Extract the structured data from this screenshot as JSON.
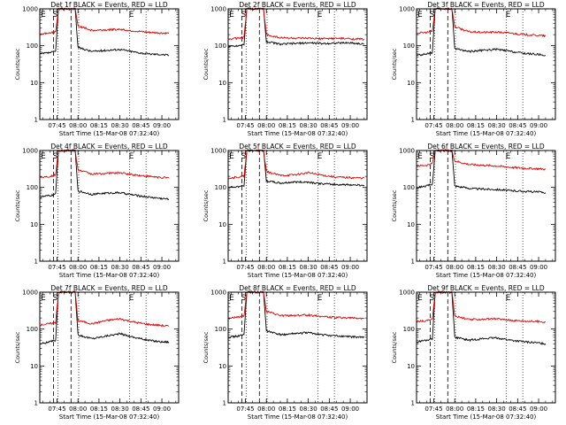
{
  "chart_data": [
    {
      "type": "line",
      "title": "Det 1f BLACK = Events, RED = LLD",
      "xlabel": "Start Time (15-Mar-08 07:32:40)",
      "ylabel": "Counts/sec",
      "x_ticks": [
        "07:45",
        "08:00",
        "08:15",
        "08:30",
        "08:45",
        "09:00"
      ],
      "y_ticks": [
        "1",
        "10",
        "100",
        "1000"
      ],
      "ylim": [
        1,
        1000
      ],
      "yscale": "log",
      "markers": [
        "E",
        "S",
        "E"
      ],
      "series": [
        {
          "name": "Events",
          "color": "#000000",
          "base": 50,
          "x": [
            "07:33",
            "07:40",
            "07:44",
            "07:46",
            "07:58",
            "08:00",
            "08:10",
            "08:20",
            "08:30",
            "08:40",
            "08:50",
            "09:00",
            "09:05"
          ],
          "values": [
            60,
            65,
            70,
            1000,
            1000,
            90,
            70,
            75,
            80,
            68,
            60,
            58,
            55
          ]
        },
        {
          "name": "LLD",
          "color": "#e00000",
          "x": [
            "07:33",
            "07:40",
            "07:44",
            "07:46",
            "07:58",
            "08:00",
            "08:10",
            "08:20",
            "08:30",
            "08:40",
            "08:50",
            "09:00",
            "09:05"
          ],
          "values": [
            210,
            220,
            240,
            1000,
            1000,
            350,
            260,
            270,
            280,
            250,
            230,
            220,
            215
          ]
        }
      ]
    },
    {
      "type": "line",
      "title": "Det 2f BLACK = Events, RED = LLD",
      "xlabel": "Start Time (15-Mar-08 07:32:40)",
      "ylabel": "Counts/sec",
      "x_ticks": [
        "07:45",
        "08:00",
        "08:15",
        "08:30",
        "08:45",
        "09:00"
      ],
      "y_ticks": [
        "1",
        "10",
        "100",
        "1000"
      ],
      "ylim": [
        1,
        1000
      ],
      "yscale": "log",
      "markers": [
        "E",
        "S",
        "E"
      ],
      "series": [
        {
          "name": "Events",
          "color": "#000000",
          "x": [
            "07:33",
            "07:40",
            "07:44",
            "07:46",
            "07:58",
            "08:00",
            "08:10",
            "08:20",
            "08:30",
            "08:40",
            "08:50",
            "09:00",
            "09:10"
          ],
          "values": [
            95,
            100,
            110,
            1000,
            1000,
            130,
            110,
            115,
            120,
            115,
            118,
            120,
            110
          ]
        },
        {
          "name": "LLD",
          "color": "#e00000",
          "x": [
            "07:33",
            "07:40",
            "07:44",
            "07:46",
            "07:58",
            "08:00",
            "08:10",
            "08:20",
            "08:30",
            "08:40",
            "08:50",
            "09:00",
            "09:10"
          ],
          "values": [
            150,
            160,
            170,
            1000,
            1000,
            200,
            165,
            160,
            158,
            155,
            158,
            155,
            150
          ]
        }
      ]
    },
    {
      "type": "line",
      "title": "Det 3f BLACK = Events, RED = LLD",
      "xlabel": "Start Time (15-Mar-08 07:32:40)",
      "ylabel": "Counts/sec",
      "x_ticks": [
        "07:45",
        "08:00",
        "08:15",
        "08:30",
        "08:45",
        "09:00"
      ],
      "y_ticks": [
        "1",
        "10",
        "100",
        "1000"
      ],
      "ylim": [
        1,
        1000
      ],
      "yscale": "log",
      "markers": [
        "E",
        "S",
        "E"
      ],
      "series": [
        {
          "name": "Events",
          "color": "#000000",
          "x": [
            "07:33",
            "07:40",
            "07:44",
            "07:46",
            "07:58",
            "08:00",
            "08:10",
            "08:20",
            "08:30",
            "08:40",
            "08:50",
            "09:00",
            "09:05"
          ],
          "values": [
            55,
            60,
            65,
            1000,
            1000,
            85,
            70,
            75,
            80,
            70,
            62,
            58,
            55
          ]
        },
        {
          "name": "LLD",
          "color": "#e00000",
          "x": [
            "07:33",
            "07:40",
            "07:44",
            "07:46",
            "07:58",
            "08:00",
            "08:10",
            "08:20",
            "08:30",
            "08:40",
            "08:50",
            "09:00",
            "09:05"
          ],
          "values": [
            220,
            230,
            250,
            1000,
            1000,
            330,
            240,
            230,
            235,
            220,
            200,
            190,
            185
          ]
        }
      ]
    },
    {
      "type": "line",
      "title": "Det 4f BLACK = Events, RED = LLD",
      "xlabel": "Start Time (15-Mar-08 07:32:40)",
      "ylabel": "Counts/sec",
      "x_ticks": [
        "07:45",
        "08:00",
        "08:15",
        "08:30",
        "08:45",
        "09:00"
      ],
      "y_ticks": [
        "1",
        "10",
        "100",
        "1000"
      ],
      "ylim": [
        1,
        1000
      ],
      "yscale": "log",
      "markers": [
        "E",
        "S",
        "E"
      ],
      "series": [
        {
          "name": "Events",
          "color": "#000000",
          "x": [
            "07:33",
            "07:40",
            "07:44",
            "07:46",
            "07:58",
            "08:00",
            "08:10",
            "08:20",
            "08:30",
            "08:40",
            "08:50",
            "09:00",
            "09:05"
          ],
          "values": [
            55,
            60,
            65,
            1000,
            1000,
            80,
            65,
            70,
            72,
            62,
            55,
            50,
            48
          ]
        },
        {
          "name": "LLD",
          "color": "#e00000",
          "x": [
            "07:33",
            "07:40",
            "07:44",
            "07:46",
            "07:58",
            "08:00",
            "08:10",
            "08:20",
            "08:30",
            "08:40",
            "08:50",
            "09:00",
            "09:05"
          ],
          "values": [
            190,
            200,
            220,
            1000,
            1000,
            300,
            230,
            240,
            250,
            220,
            200,
            185,
            180
          ]
        }
      ]
    },
    {
      "type": "line",
      "title": "Det 5f BLACK = Events, RED = LLD",
      "xlabel": "Start Time (15-Mar-08 07:32:40)",
      "ylabel": "Counts/sec",
      "x_ticks": [
        "07:45",
        "08:00",
        "08:15",
        "08:30",
        "08:45",
        "09:00"
      ],
      "y_ticks": [
        "1",
        "10",
        "100",
        "1000"
      ],
      "ylim": [
        1,
        1000
      ],
      "yscale": "log",
      "markers": [
        "E",
        "S",
        "E"
      ],
      "series": [
        {
          "name": "Events",
          "color": "#000000",
          "x": [
            "07:33",
            "07:40",
            "07:44",
            "07:46",
            "07:58",
            "08:00",
            "08:10",
            "08:20",
            "08:30",
            "08:40",
            "08:50",
            "09:00",
            "09:10"
          ],
          "values": [
            100,
            105,
            110,
            1000,
            1000,
            150,
            130,
            140,
            140,
            125,
            120,
            118,
            115
          ]
        },
        {
          "name": "LLD",
          "color": "#e00000",
          "x": [
            "07:33",
            "07:40",
            "07:44",
            "07:46",
            "07:58",
            "08:00",
            "08:10",
            "08:20",
            "08:30",
            "08:40",
            "08:50",
            "09:00",
            "09:10"
          ],
          "values": [
            180,
            190,
            200,
            1000,
            1000,
            270,
            210,
            220,
            250,
            215,
            190,
            185,
            180
          ]
        }
      ]
    },
    {
      "type": "line",
      "title": "Det 6f BLACK = Events, RED = LLD",
      "xlabel": "Start Time (15-Mar-08 07:32:40)",
      "ylabel": "Counts/sec",
      "x_ticks": [
        "07:45",
        "08:00",
        "08:15",
        "08:30",
        "08:45",
        "09:00"
      ],
      "y_ticks": [
        "1",
        "10",
        "100",
        "1000"
      ],
      "ylim": [
        1,
        1000
      ],
      "yscale": "log",
      "markers": [
        "E",
        "S",
        "E"
      ],
      "series": [
        {
          "name": "Events",
          "color": "#000000",
          "x": [
            "07:33",
            "07:40",
            "07:44",
            "07:46",
            "07:58",
            "08:00",
            "08:10",
            "08:20",
            "08:30",
            "08:40",
            "08:50",
            "09:00",
            "09:05"
          ],
          "values": [
            100,
            110,
            120,
            1000,
            1000,
            110,
            95,
            90,
            88,
            82,
            78,
            75,
            72
          ]
        },
        {
          "name": "LLD",
          "color": "#e00000",
          "x": [
            "07:33",
            "07:40",
            "07:44",
            "07:46",
            "07:58",
            "08:00",
            "08:10",
            "08:20",
            "08:30",
            "08:40",
            "08:50",
            "09:00",
            "09:05"
          ],
          "values": [
            380,
            400,
            450,
            1000,
            1000,
            520,
            420,
            400,
            380,
            350,
            330,
            320,
            310
          ]
        }
      ]
    },
    {
      "type": "line",
      "title": "Det 7f BLACK = Events, RED = LLD",
      "xlabel": "Start Time (15-Mar-08 07:32:40)",
      "ylabel": "Counts/sec",
      "x_ticks": [
        "07:45",
        "08:00",
        "08:15",
        "08:30",
        "08:45",
        "09:00"
      ],
      "y_ticks": [
        "1",
        "10",
        "100",
        "1000"
      ],
      "ylim": [
        1,
        1000
      ],
      "yscale": "log",
      "markers": [
        "E",
        "S",
        "E"
      ],
      "series": [
        {
          "name": "Events",
          "color": "#000000",
          "x": [
            "07:33",
            "07:40",
            "07:44",
            "07:46",
            "07:58",
            "08:00",
            "08:10",
            "08:20",
            "08:30",
            "08:40",
            "08:50",
            "09:00",
            "09:05"
          ],
          "values": [
            40,
            45,
            50,
            1000,
            1000,
            70,
            55,
            65,
            75,
            60,
            50,
            45,
            45
          ]
        },
        {
          "name": "LLD",
          "color": "#e00000",
          "x": [
            "07:33",
            "07:40",
            "07:44",
            "07:46",
            "07:58",
            "08:00",
            "08:10",
            "08:20",
            "08:30",
            "08:40",
            "08:50",
            "09:00",
            "09:05"
          ],
          "values": [
            130,
            140,
            150,
            1000,
            1000,
            170,
            140,
            170,
            190,
            155,
            135,
            125,
            120
          ]
        }
      ]
    },
    {
      "type": "line",
      "title": "Det 8f BLACK = Events, RED = LLD",
      "xlabel": "Start Time (15-Mar-08 07:32:40)",
      "ylabel": "Counts/sec",
      "x_ticks": [
        "07:45",
        "08:00",
        "08:15",
        "08:30",
        "08:45",
        "09:00"
      ],
      "y_ticks": [
        "1",
        "10",
        "100",
        "1000"
      ],
      "ylim": [
        1,
        1000
      ],
      "yscale": "log",
      "markers": [
        "E",
        "S",
        "E"
      ],
      "series": [
        {
          "name": "Events",
          "color": "#000000",
          "x": [
            "07:33",
            "07:40",
            "07:44",
            "07:46",
            "07:58",
            "08:00",
            "08:10",
            "08:20",
            "08:30",
            "08:40",
            "08:50",
            "09:00",
            "09:10"
          ],
          "values": [
            60,
            65,
            70,
            1000,
            1000,
            90,
            70,
            75,
            80,
            70,
            65,
            62,
            60
          ]
        },
        {
          "name": "LLD",
          "color": "#e00000",
          "x": [
            "07:33",
            "07:40",
            "07:44",
            "07:46",
            "07:58",
            "08:00",
            "08:10",
            "08:20",
            "08:30",
            "08:40",
            "08:50",
            "09:00",
            "09:10"
          ],
          "values": [
            200,
            210,
            230,
            1000,
            1000,
            300,
            230,
            235,
            240,
            220,
            205,
            200,
            195
          ]
        }
      ]
    },
    {
      "type": "line",
      "title": "Det 9f BLACK = Events, RED = LLD",
      "xlabel": "Start Time (15-Mar-08 07:32:40)",
      "ylabel": "Counts/sec",
      "x_ticks": [
        "07:45",
        "08:00",
        "08:15",
        "08:30",
        "08:45",
        "09:00"
      ],
      "y_ticks": [
        "1",
        "10",
        "100",
        "1000"
      ],
      "ylim": [
        1,
        1000
      ],
      "yscale": "log",
      "markers": [
        "E",
        "S",
        "E"
      ],
      "series": [
        {
          "name": "Events",
          "color": "#000000",
          "x": [
            "07:33",
            "07:40",
            "07:44",
            "07:46",
            "07:58",
            "08:00",
            "08:10",
            "08:20",
            "08:30",
            "08:40",
            "08:50",
            "09:00",
            "09:05"
          ],
          "values": [
            45,
            50,
            55,
            1000,
            1000,
            60,
            50,
            55,
            58,
            50,
            45,
            42,
            40
          ]
        },
        {
          "name": "LLD",
          "color": "#e00000",
          "x": [
            "07:33",
            "07:40",
            "07:44",
            "07:46",
            "07:58",
            "08:00",
            "08:10",
            "08:20",
            "08:30",
            "08:40",
            "08:50",
            "09:00",
            "09:05"
          ],
          "values": [
            160,
            170,
            180,
            1000,
            1000,
            230,
            180,
            185,
            190,
            175,
            165,
            160,
            155
          ]
        }
      ]
    }
  ]
}
